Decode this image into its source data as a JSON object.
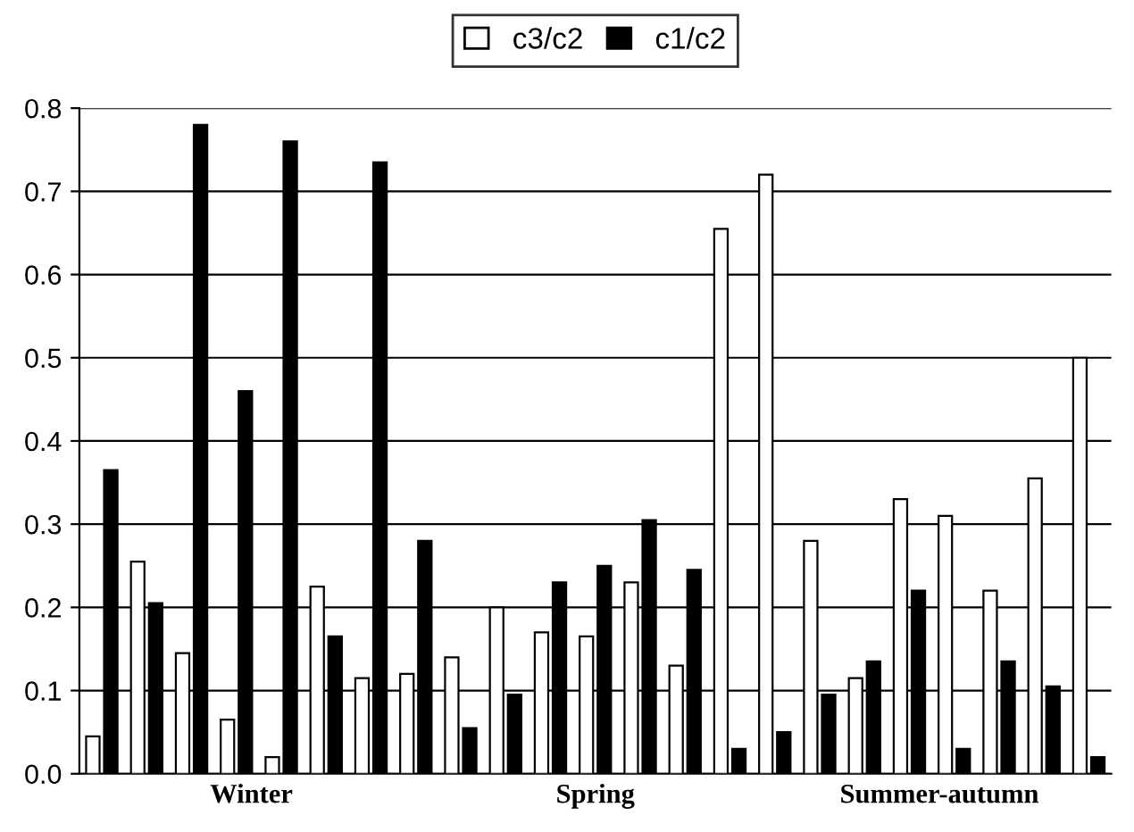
{
  "chart_data": {
    "type": "bar",
    "categories": [
      null,
      null,
      null,
      null,
      null,
      null,
      null,
      null,
      null,
      null,
      null,
      null,
      null,
      null,
      null,
      null,
      null,
      null,
      null,
      null,
      null,
      null,
      null
    ],
    "series": [
      {
        "name": "c3/c2",
        "color": "#ffffff",
        "values": [
          0.045,
          0.255,
          0.145,
          0.065,
          0.02,
          0.225,
          0.115,
          0.12,
          0.14,
          0.2,
          0.17,
          0.165,
          0.23,
          0.13,
          0.655,
          0.72,
          0.28,
          0.115,
          0.33,
          0.31,
          0.22,
          0.355,
          0.5
        ]
      },
      {
        "name": "c1/c2",
        "color": "#000000",
        "values": [
          0.365,
          0.205,
          0.78,
          0.46,
          0.76,
          0.165,
          0.735,
          0.28,
          0.055,
          0.095,
          0.23,
          0.25,
          0.305,
          0.245,
          0.03,
          0.05,
          0.095,
          0.135,
          0.22,
          0.03,
          0.135,
          0.105,
          0.02
        ]
      }
    ],
    "annotations": [
      "Winter",
      "Spring",
      "Summer-autumn"
    ],
    "ylim": [
      0,
      0.8
    ],
    "yticks": [
      {
        "value": 0,
        "label": "0.0"
      },
      {
        "value": 0.1,
        "label": "0.1"
      },
      {
        "value": 0.2,
        "label": "0.2"
      },
      {
        "value": 0.3,
        "label": "0.3"
      },
      {
        "value": 0.4,
        "label": "0.4"
      },
      {
        "value": 0.5,
        "label": "0.5"
      },
      {
        "value": 0.6,
        "label": "0.6"
      },
      {
        "value": 0.7,
        "label": "0.7"
      },
      {
        "value": 0.8,
        "label": "0.8"
      }
    ],
    "grid": "y",
    "legend": "top"
  }
}
